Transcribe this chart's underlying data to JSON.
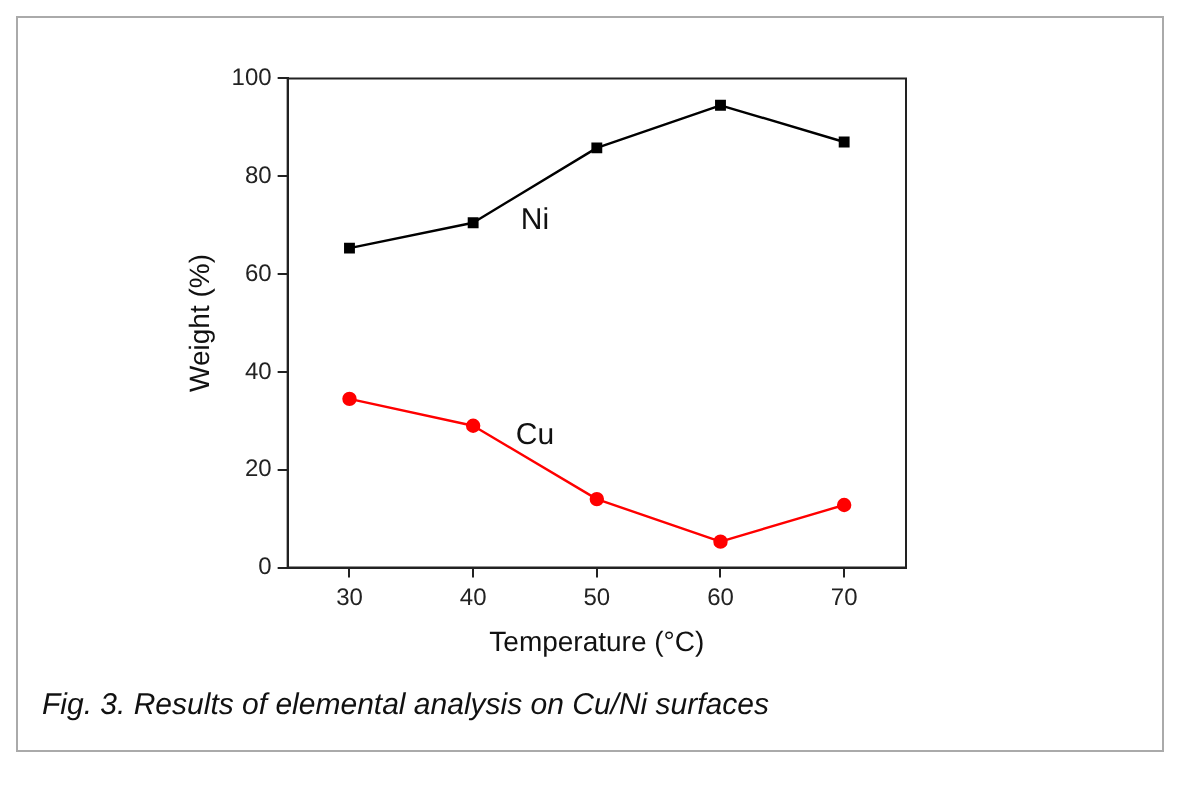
{
  "chart_data": {
    "type": "line",
    "xlabel": "Temperature (°C)",
    "ylabel": "Weight (%)",
    "x": [
      30,
      40,
      50,
      60,
      70
    ],
    "series": [
      {
        "name": "Ni",
        "color": "#000000",
        "marker": "square",
        "values": [
          65.3,
          70.5,
          85.8,
          94.5,
          87
        ]
      },
      {
        "name": "Cu",
        "color": "#ff0000",
        "marker": "circle",
        "values": [
          34.5,
          29,
          14,
          5.3,
          12.8
        ]
      }
    ],
    "xlim": [
      25,
      75
    ],
    "xticks": [
      30,
      40,
      50,
      60,
      70
    ],
    "ylim": [
      0,
      100
    ],
    "yticks": [
      0,
      20,
      40,
      60,
      80,
      100
    ],
    "grid": false,
    "legend": false,
    "line_style": "solid",
    "annotations": [
      "Fig. 3. Results of elemental analysis on Cu/Ni surfaces"
    ]
  }
}
